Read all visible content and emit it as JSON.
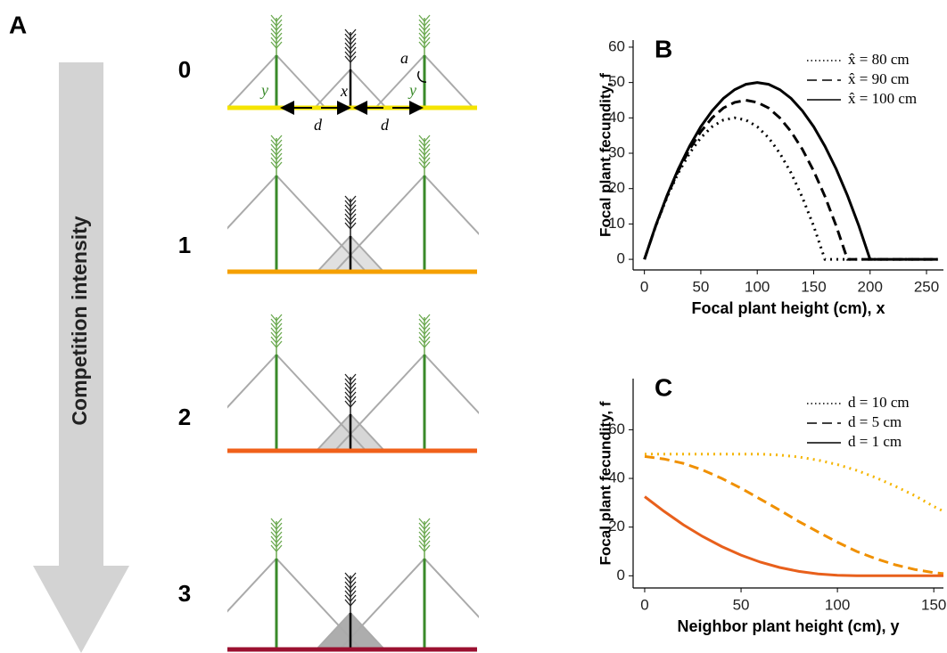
{
  "panel_a": {
    "label": "A",
    "arrow_label": "Competition intensity",
    "rows": [
      "0",
      "1",
      "2",
      "3"
    ],
    "annotations": {
      "y_left": "y",
      "x": "x",
      "a": "a",
      "y_right": "y",
      "d_left": "d",
      "d_right": "d"
    }
  },
  "chart_data": [
    {
      "type": "line",
      "panel_label": "B",
      "ylabel": "Focal plant fecundity, f",
      "xlabel": "Focal plant height (cm), x",
      "x": [
        0,
        10,
        20,
        30,
        40,
        50,
        60,
        70,
        80,
        90,
        100,
        110,
        120,
        130,
        140,
        150,
        160,
        170,
        180,
        190,
        200,
        210,
        220,
        230,
        240,
        250,
        260
      ],
      "series": [
        {
          "name": "x̂ = 80 cm",
          "color": "#000000",
          "dash": "dotted",
          "values": [
            0,
            9.4,
            17.5,
            24.4,
            30,
            34.4,
            37.5,
            39.4,
            40,
            39.4,
            37.5,
            34.4,
            30,
            24.4,
            17.5,
            9.4,
            0,
            0,
            0,
            0,
            0,
            0,
            0,
            0,
            0,
            0,
            0
          ]
        },
        {
          "name": "x̂ = 90 cm",
          "color": "#000000",
          "dash": "dashed",
          "values": [
            0,
            9.4,
            17.8,
            25,
            31.1,
            36.1,
            40,
            42.8,
            44.4,
            45,
            44.4,
            42.8,
            40,
            36.1,
            31.1,
            25,
            17.8,
            9.4,
            0,
            0,
            0,
            0,
            0,
            0,
            0,
            0,
            0
          ]
        },
        {
          "name": "x̂ = 100 cm",
          "color": "#000000",
          "dash": "solid",
          "values": [
            0,
            9.5,
            18,
            25.5,
            32,
            37.5,
            42,
            45.5,
            48,
            49.5,
            50,
            49.5,
            48,
            45.5,
            42,
            37.5,
            32,
            25.5,
            18,
            9.5,
            0,
            0,
            0,
            0,
            0,
            0,
            0
          ]
        }
      ],
      "xlim": [
        -10,
        265
      ],
      "ylim": [
        -3,
        62
      ],
      "xticks": [
        0,
        50,
        100,
        150,
        200,
        250
      ],
      "yticks": [
        0,
        10,
        20,
        30,
        40,
        50,
        60
      ],
      "legend": "upper right"
    },
    {
      "type": "line",
      "panel_label": "C",
      "ylabel": "Focal plant fecundity, f",
      "xlabel": "Neighbor plant height (cm), y",
      "x": [
        0,
        10,
        20,
        30,
        40,
        50,
        60,
        70,
        80,
        90,
        100,
        110,
        120,
        130,
        140,
        150,
        155
      ],
      "series": [
        {
          "name": "d =  10 cm",
          "color": "#f5b500",
          "dash": "dotted",
          "values": [
            50,
            50,
            50,
            50,
            50,
            50,
            50,
            49.6,
            48.8,
            47.5,
            45.7,
            43.3,
            40.3,
            36.8,
            33,
            28.5,
            26.5
          ]
        },
        {
          "name": "d = 5 cm",
          "color": "#f09000",
          "dash": "dashed",
          "values": [
            49,
            48,
            46.2,
            43.5,
            40,
            36,
            31.5,
            27,
            22.3,
            18,
            13.8,
            10,
            7,
            4.5,
            2.6,
            1.3,
            0.9
          ]
        },
        {
          "name": "d = 1 cm",
          "color": "#e8601c",
          "dash": "solid",
          "values": [
            32.5,
            26.5,
            21,
            16.2,
            12,
            8.5,
            5.6,
            3.4,
            1.8,
            0.8,
            0.25,
            0.03,
            0,
            0,
            0,
            0,
            0
          ]
        }
      ],
      "xlim": [
        -6,
        155
      ],
      "ylim": [
        -5,
        81
      ],
      "xticks": [
        0,
        50,
        100,
        150
      ],
      "yticks": [
        0,
        20,
        40,
        60
      ],
      "legend": "upper right"
    }
  ]
}
